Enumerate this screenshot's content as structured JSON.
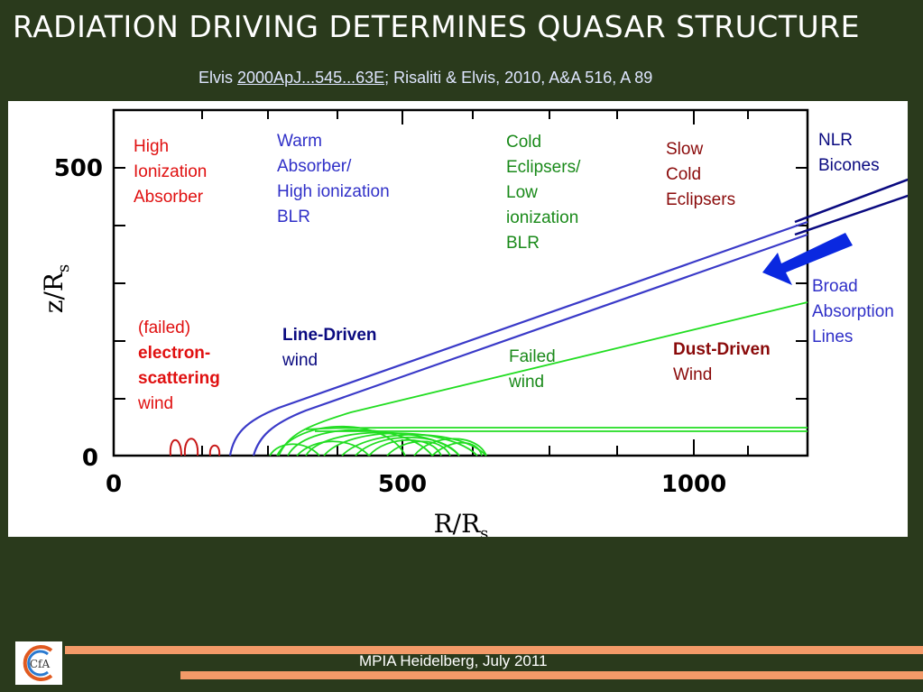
{
  "title": "Radiation driving determines quasar structure",
  "citation": {
    "prefix": "Elvis ",
    "link": "2000ApJ...545...63E",
    "suffix": ";  Risaliti & Elvis, 2010, A&A 516, A 89"
  },
  "plot": {
    "x_ticks": [
      "0",
      "500",
      "1000"
    ],
    "y_ticks": [
      "0",
      "500"
    ]
  },
  "labels": {
    "high_ionization": [
      "High",
      "Ionization",
      "Absorber"
    ],
    "warm_absorber": [
      "Warm",
      "Absorber/",
      "High ionization",
      "BLR"
    ],
    "cold_eclipsers": [
      "Cold",
      "Eclipsers/",
      "Low",
      "ionization",
      "BLR"
    ],
    "slow_cold": [
      "Slow",
      "Cold",
      "Eclipsers"
    ],
    "nlr": [
      "NLR",
      "Bicones"
    ],
    "bal": [
      "Broad",
      "Absorption",
      "Lines"
    ],
    "failed_es": [
      "(failed)",
      "electron-",
      "scattering",
      "wind"
    ],
    "line_driven": [
      "Line-Driven",
      "wind"
    ],
    "failed_wind": [
      "Failed",
      "wind"
    ],
    "dust_driven": [
      "Dust-Driven",
      "Wind"
    ]
  },
  "footer": "MPIA Heidelberg, July 2011",
  "logo": "CfA",
  "colors": {
    "background": "#2a3a1c",
    "accent": "#f39a68",
    "line_driven": "#3a3ac8",
    "failed": "#22dd22",
    "electron": "#c81818",
    "arrow": "#0a28e0"
  }
}
